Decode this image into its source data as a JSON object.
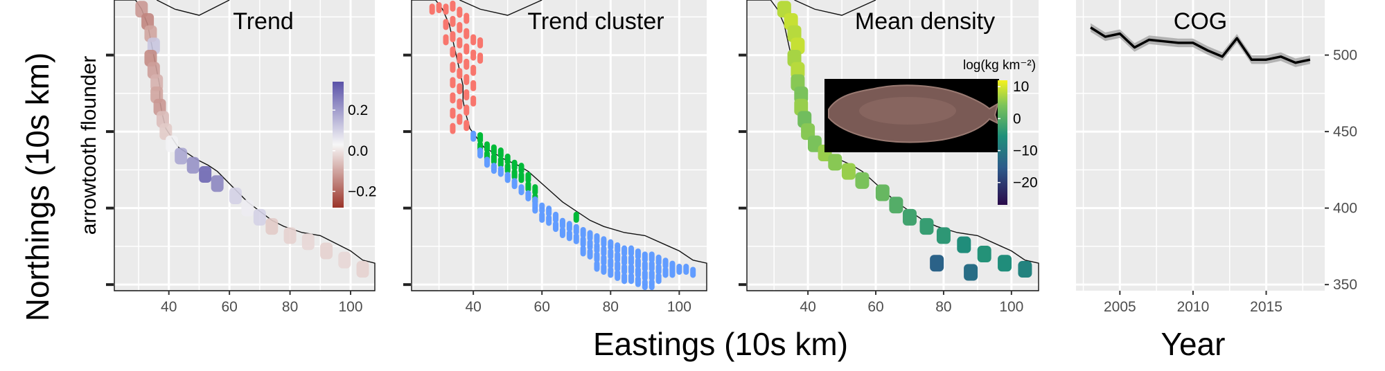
{
  "figure": {
    "y_axis_title": "Northings (10s km)",
    "x_axis_title_maps": "Eastings (10s km)",
    "x_axis_title_cog": "Year",
    "row_label": "arrowtooth flounder"
  },
  "panels": [
    {
      "title": "Trend"
    },
    {
      "title": "Trend cluster"
    },
    {
      "title": "Mean density"
    },
    {
      "title": "COG"
    }
  ],
  "colors": {
    "panel_bg": "#ebebeb",
    "grid": "#ffffff",
    "cluster_red": "#f8766d",
    "cluster_green": "#00ba38",
    "cluster_blue": "#619cff",
    "trend_pos": "#5a52a8",
    "trend_neg": "#9a3328",
    "cog_line": "#000000",
    "cog_ribbon": "#a8a8a8"
  },
  "legends": {
    "trend": {
      "ticks": [
        "0.2",
        "0.0",
        "−0.2"
      ],
      "tick_values": [
        0.2,
        0.0,
        -0.2
      ],
      "range": [
        -0.28,
        0.34
      ]
    },
    "density": {
      "title": "log(kg km⁻²)",
      "ticks": [
        "10",
        "0",
        "−10",
        "−20"
      ],
      "tick_values": [
        10,
        0,
        -10,
        -20
      ],
      "range": [
        -27,
        12
      ]
    }
  },
  "chart_data": [
    {
      "type": "heatmap",
      "panel": "Trend",
      "xlabel": "Eastings (10s km)",
      "ylabel": "Northings (10s km)",
      "x_ticks": [
        40,
        60,
        80,
        100
      ],
      "y_ticks": [
        350,
        400,
        450,
        500
      ],
      "xlim": [
        22,
        108
      ],
      "ylim": [
        346,
        536
      ],
      "cells": [
        {
          "x": 31,
          "y": 530,
          "v": -0.12
        },
        {
          "x": 33,
          "y": 522,
          "v": -0.15
        },
        {
          "x": 34,
          "y": 514,
          "v": -0.1
        },
        {
          "x": 35,
          "y": 506,
          "v": 0.12
        },
        {
          "x": 34,
          "y": 498,
          "v": -0.14
        },
        {
          "x": 35,
          "y": 490,
          "v": -0.11
        },
        {
          "x": 36,
          "y": 482,
          "v": -0.08
        },
        {
          "x": 36,
          "y": 474,
          "v": -0.1
        },
        {
          "x": 37,
          "y": 466,
          "v": -0.12
        },
        {
          "x": 38,
          "y": 458,
          "v": -0.06
        },
        {
          "x": 39,
          "y": 450,
          "v": -0.04
        },
        {
          "x": 41,
          "y": 442,
          "v": 0.04
        },
        {
          "x": 44,
          "y": 434,
          "v": 0.18
        },
        {
          "x": 48,
          "y": 428,
          "v": 0.22
        },
        {
          "x": 52,
          "y": 422,
          "v": 0.3
        },
        {
          "x": 56,
          "y": 416,
          "v": 0.24
        },
        {
          "x": 62,
          "y": 408,
          "v": 0.1
        },
        {
          "x": 66,
          "y": 400,
          "v": 0.05
        },
        {
          "x": 70,
          "y": 394,
          "v": 0.1
        },
        {
          "x": 74,
          "y": 388,
          "v": -0.04
        },
        {
          "x": 80,
          "y": 382,
          "v": -0.03
        },
        {
          "x": 86,
          "y": 378,
          "v": -0.02
        },
        {
          "x": 92,
          "y": 372,
          "v": -0.03
        },
        {
          "x": 98,
          "y": 366,
          "v": -0.02
        },
        {
          "x": 104,
          "y": 360,
          "v": -0.03
        }
      ]
    },
    {
      "type": "scatter",
      "panel": "Trend cluster",
      "xlabel": "Eastings (10s km)",
      "ylabel": "Northings (10s km)",
      "x_ticks": [
        40,
        60,
        80,
        100
      ],
      "y_ticks": [
        350,
        400,
        450,
        500
      ],
      "xlim": [
        22,
        108
      ],
      "ylim": [
        346,
        536
      ],
      "series": [
        {
          "color": "cluster_red",
          "points": [
            [
              28,
              530
            ],
            [
              30,
              531
            ],
            [
              32,
              530
            ],
            [
              32,
              520
            ],
            [
              32,
              510
            ],
            [
              34,
              532
            ],
            [
              34,
              522
            ],
            [
              34,
              512
            ],
            [
              34,
              502
            ],
            [
              34,
              492
            ],
            [
              34,
              482
            ],
            [
              34,
              472
            ],
            [
              34,
              462
            ],
            [
              34,
              452
            ],
            [
              36,
              528
            ],
            [
              36,
              518
            ],
            [
              36,
              508
            ],
            [
              36,
              498
            ],
            [
              36,
              488
            ],
            [
              36,
              478
            ],
            [
              36,
              468
            ],
            [
              36,
              458
            ],
            [
              38,
              524
            ],
            [
              38,
              514
            ],
            [
              38,
              504
            ],
            [
              38,
              494
            ],
            [
              38,
              484
            ],
            [
              38,
              474
            ],
            [
              38,
              464
            ],
            [
              38,
              454
            ],
            [
              40,
              510
            ],
            [
              40,
              500
            ],
            [
              40,
              490
            ],
            [
              40,
              480
            ],
            [
              40,
              470
            ],
            [
              42,
              508
            ],
            [
              42,
              498
            ]
          ]
        },
        {
          "color": "cluster_green",
          "points": [
            [
              42,
              446
            ],
            [
              42,
              440
            ],
            [
              44,
              440
            ],
            [
              44,
              434
            ],
            [
              46,
              438
            ],
            [
              46,
              432
            ],
            [
              48,
              436
            ],
            [
              48,
              430
            ],
            [
              50,
              432
            ],
            [
              50,
              426
            ],
            [
              52,
              428
            ],
            [
              52,
              422
            ],
            [
              54,
              426
            ],
            [
              54,
              420
            ],
            [
              56,
              420
            ],
            [
              56,
              414
            ],
            [
              58,
              412
            ],
            [
              58,
              406
            ],
            [
              70,
              394
            ]
          ]
        },
        {
          "color": "cluster_blue",
          "points": [
            [
              40,
              447
            ],
            [
              42,
              436
            ],
            [
              44,
              430
            ],
            [
              46,
              426
            ],
            [
              48,
              424
            ],
            [
              50,
              420
            ],
            [
              52,
              416
            ],
            [
              54,
              412
            ],
            [
              56,
              408
            ],
            [
              58,
              400
            ],
            [
              58,
              404
            ],
            [
              60,
              400
            ],
            [
              60,
              394
            ],
            [
              62,
              398
            ],
            [
              62,
              392
            ],
            [
              64,
              394
            ],
            [
              64,
              388
            ],
            [
              66,
              390
            ],
            [
              66,
              384
            ],
            [
              68,
              388
            ],
            [
              68,
              382
            ],
            [
              70,
              386
            ],
            [
              70,
              380
            ],
            [
              72,
              384
            ],
            [
              72,
              378
            ],
            [
              72,
              372
            ],
            [
              74,
              382
            ],
            [
              74,
              376
            ],
            [
              74,
              370
            ],
            [
              76,
              380
            ],
            [
              76,
              374
            ],
            [
              76,
              368
            ],
            [
              76,
              362
            ],
            [
              78,
              378
            ],
            [
              78,
              372
            ],
            [
              78,
              366
            ],
            [
              78,
              360
            ],
            [
              80,
              376
            ],
            [
              80,
              370
            ],
            [
              80,
              364
            ],
            [
              80,
              358
            ],
            [
              82,
              374
            ],
            [
              82,
              368
            ],
            [
              82,
              362
            ],
            [
              82,
              356
            ],
            [
              84,
              372
            ],
            [
              84,
              366
            ],
            [
              84,
              360
            ],
            [
              84,
              354
            ],
            [
              86,
              372
            ],
            [
              86,
              366
            ],
            [
              86,
              360
            ],
            [
              86,
              354
            ],
            [
              88,
              370
            ],
            [
              88,
              364
            ],
            [
              88,
              358
            ],
            [
              88,
              352
            ],
            [
              90,
              368
            ],
            [
              90,
              362
            ],
            [
              90,
              356
            ],
            [
              90,
              350
            ],
            [
              92,
              368
            ],
            [
              92,
              362
            ],
            [
              92,
              356
            ],
            [
              92,
              350
            ],
            [
              94,
              366
            ],
            [
              94,
              360
            ],
            [
              94,
              354
            ],
            [
              96,
              364
            ],
            [
              96,
              358
            ],
            [
              98,
              362
            ],
            [
              98,
              358
            ],
            [
              100,
              360
            ],
            [
              102,
              360
            ],
            [
              104,
              358
            ]
          ]
        }
      ]
    },
    {
      "type": "heatmap",
      "panel": "Mean density",
      "xlabel": "Eastings (10s km)",
      "ylabel": "Northings (10s km)",
      "x_ticks": [
        40,
        60,
        80,
        100
      ],
      "y_ticks": [
        350,
        400,
        450,
        500
      ],
      "xlim": [
        22,
        108
      ],
      "ylim": [
        346,
        536
      ],
      "color_scale_ticks": [
        10,
        0,
        -10,
        -20
      ],
      "cells": [
        {
          "x": 33,
          "y": 530,
          "v": 8
        },
        {
          "x": 35,
          "y": 522,
          "v": 9
        },
        {
          "x": 36,
          "y": 514,
          "v": 8
        },
        {
          "x": 37,
          "y": 506,
          "v": 9
        },
        {
          "x": 36,
          "y": 498,
          "v": 7
        },
        {
          "x": 37,
          "y": 490,
          "v": 8
        },
        {
          "x": 37,
          "y": 482,
          "v": 5
        },
        {
          "x": 38,
          "y": 474,
          "v": 4
        },
        {
          "x": 38,
          "y": 466,
          "v": 6
        },
        {
          "x": 39,
          "y": 458,
          "v": 3
        },
        {
          "x": 40,
          "y": 450,
          "v": 5
        },
        {
          "x": 42,
          "y": 442,
          "v": 4
        },
        {
          "x": 45,
          "y": 436,
          "v": 6
        },
        {
          "x": 48,
          "y": 430,
          "v": 5
        },
        {
          "x": 52,
          "y": 424,
          "v": 6
        },
        {
          "x": 56,
          "y": 418,
          "v": 4
        },
        {
          "x": 62,
          "y": 410,
          "v": 2
        },
        {
          "x": 66,
          "y": 402,
          "v": 0
        },
        {
          "x": 70,
          "y": 394,
          "v": -2
        },
        {
          "x": 75,
          "y": 388,
          "v": -3
        },
        {
          "x": 80,
          "y": 382,
          "v": -4
        },
        {
          "x": 86,
          "y": 376,
          "v": -6
        },
        {
          "x": 92,
          "y": 370,
          "v": -5
        },
        {
          "x": 98,
          "y": 364,
          "v": -6
        },
        {
          "x": 104,
          "y": 360,
          "v": -8
        },
        {
          "x": 78,
          "y": 364,
          "v": -14
        },
        {
          "x": 88,
          "y": 358,
          "v": -12
        }
      ]
    },
    {
      "type": "line",
      "panel": "COG",
      "xlabel": "Year",
      "ylabel": "Northings (10s km)",
      "x_ticks": [
        2005,
        2010,
        2015
      ],
      "y_ticks": [
        350,
        400,
        450,
        500
      ],
      "xlim": [
        2002,
        2019
      ],
      "ylim": [
        346,
        536
      ],
      "x": [
        2003,
        2004,
        2005,
        2006,
        2007,
        2008,
        2009,
        2010,
        2011,
        2012,
        2013,
        2014,
        2015,
        2016,
        2017,
        2018
      ],
      "y": [
        518,
        512,
        514,
        505,
        510,
        509,
        508,
        508,
        503,
        499,
        511,
        497,
        497,
        499,
        495,
        497
      ],
      "ribbon_halfwidth": 2.8
    }
  ]
}
